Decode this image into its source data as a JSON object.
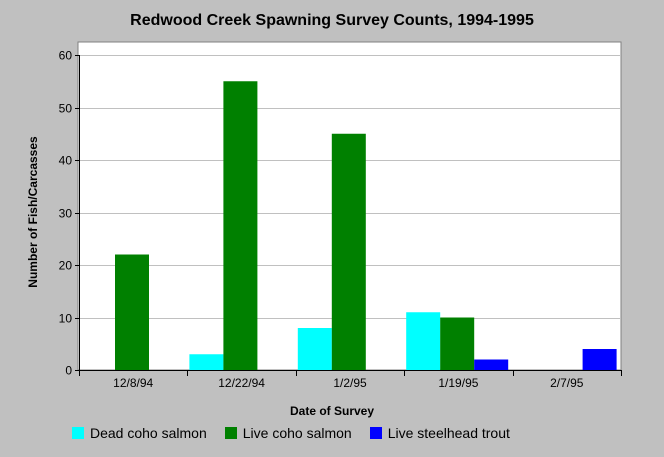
{
  "chart_data": {
    "type": "bar",
    "title": "Redwood Creek Spawning Survey Counts, 1994-1995",
    "xlabel": "Date of Survey",
    "ylabel": "Number of Fish/Carcasses",
    "categories": [
      "12/8/94",
      "12/22/94",
      "1/2/95",
      "1/19/95",
      "2/7/95"
    ],
    "ylim": [
      0,
      60
    ],
    "yticks": [
      0,
      10,
      20,
      30,
      40,
      50,
      60
    ],
    "grid": true,
    "legend_position": "bottom",
    "series": [
      {
        "name": "Dead coho salmon",
        "color": "#00ffff",
        "values": [
          0,
          3,
          8,
          11,
          0
        ]
      },
      {
        "name": "Live coho salmon",
        "color": "#008000",
        "values": [
          22,
          55,
          45,
          10,
          0
        ]
      },
      {
        "name": "Live steelhead trout",
        "color": "#0000ff",
        "values": [
          0,
          0,
          0,
          2,
          4
        ]
      }
    ]
  }
}
